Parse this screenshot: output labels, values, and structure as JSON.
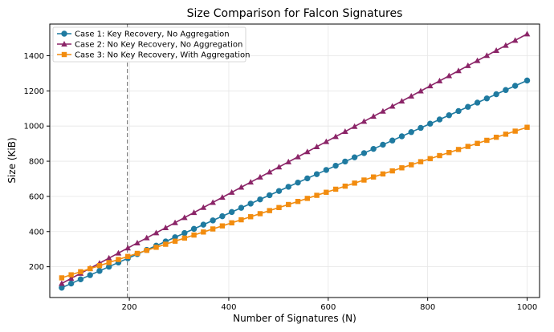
{
  "chart_data": {
    "type": "line",
    "title": "Size Comparison for Falcon Signatures",
    "xlabel": "Number of Signatures (N)",
    "ylabel": "Size (KiB)",
    "xlim": [
      40,
      1025
    ],
    "ylim": [
      25,
      1580
    ],
    "x_ticks": [
      200,
      400,
      600,
      800,
      1000
    ],
    "y_ticks": [
      200,
      400,
      600,
      800,
      1000,
      1200,
      1400
    ],
    "grid": true,
    "legend_position": "top-left",
    "reference_line": {
      "x": 196,
      "style": "dashed",
      "color": "#808080"
    },
    "x": [
      64,
      83,
      102,
      121,
      140,
      159,
      178,
      197,
      216,
      235,
      254,
      273,
      292,
      311,
      330,
      349,
      368,
      387,
      406,
      425,
      444,
      463,
      482,
      501,
      520,
      539,
      558,
      577,
      596,
      615,
      634,
      653,
      672,
      691,
      710,
      729,
      748,
      767,
      786,
      805,
      824,
      843,
      862,
      881,
      900,
      919,
      938,
      957,
      976,
      1000
    ],
    "series": [
      {
        "name": "Case 1: Key Recovery, No Aggregation",
        "color": "#1f7aa0",
        "marker": "circle",
        "slope": 1.2591,
        "intercept": 0
      },
      {
        "name": "Case 2: No Key Recovery, No Aggregation",
        "color": "#8b2568",
        "marker": "triangle",
        "slope": 1.5158,
        "intercept": 7.8
      },
      {
        "name": "Case 3: No Key Recovery, With Aggregation",
        "color": "#f28c0f",
        "marker": "square",
        "slope": 0.9147,
        "intercept": 78.3
      }
    ]
  }
}
